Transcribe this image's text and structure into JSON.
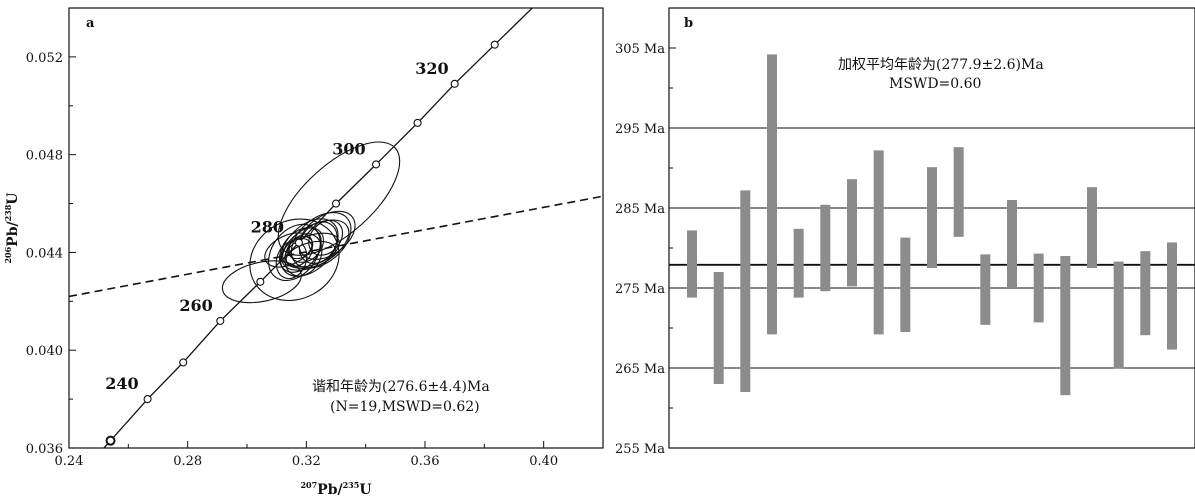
{
  "chart_data": [
    {
      "type": "scatter",
      "panel": "a",
      "xlabel": {
        "sup1": "207",
        "main1": "Pb/",
        "sup2": "235",
        "main2": "U"
      },
      "ylabel": {
        "sup1": "206",
        "main1": "Pb/",
        "sup2": "238",
        "main2": "U"
      },
      "xlim": [
        0.24,
        0.42
      ],
      "ylim": [
        0.036,
        0.054
      ],
      "x_ticks": [
        "0.24",
        "0.28",
        "0.32",
        "0.36",
        "0.40"
      ],
      "y_ticks": [
        "0.036",
        "0.040",
        "0.044",
        "0.048",
        "0.052"
      ],
      "concordia_points": [
        {
          "x": 0.254,
          "y": 0.0363
        },
        {
          "x": 0.2665,
          "y": 0.038
        },
        {
          "x": 0.2785,
          "y": 0.0395
        },
        {
          "x": 0.291,
          "y": 0.0412
        },
        {
          "x": 0.3045,
          "y": 0.0428
        },
        {
          "x": 0.3175,
          "y": 0.0444
        },
        {
          "x": 0.33,
          "y": 0.046
        },
        {
          "x": 0.3435,
          "y": 0.0476
        },
        {
          "x": 0.3575,
          "y": 0.0493
        },
        {
          "x": 0.37,
          "y": 0.0509
        },
        {
          "x": 0.3835,
          "y": 0.0525
        }
      ],
      "age_labels": [
        {
          "text": "240",
          "x": 0.2655,
          "y": 0.038
        },
        {
          "text": "260",
          "x": 0.2905,
          "y": 0.0412
        },
        {
          "text": "280",
          "x": 0.3145,
          "y": 0.0444
        },
        {
          "text": "300",
          "x": 0.342,
          "y": 0.0476
        },
        {
          "text": "320",
          "x": 0.37,
          "y": 0.0509
        }
      ],
      "discordia_line": {
        "x1": 0.24,
        "y1": 0.0422,
        "x2": 0.42,
        "y2": 0.0463
      },
      "error_ellipses": [
        {
          "cx": 0.331,
          "cy": 0.0462,
          "rx": 0.0255,
          "ry": 0.0014,
          "angle": -42
        },
        {
          "cx": 0.316,
          "cy": 0.0437,
          "rx": 0.0155,
          "ry": 0.0016,
          "angle": -28
        },
        {
          "cx": 0.305,
          "cy": 0.0428,
          "rx": 0.0135,
          "ry": 0.0008,
          "angle": -12
        },
        {
          "cx": 0.316,
          "cy": 0.044,
          "rx": 0.0105,
          "ry": 0.0009,
          "angle": -52
        },
        {
          "cx": 0.321,
          "cy": 0.0442,
          "rx": 0.0115,
          "ry": 0.0009,
          "angle": -45
        },
        {
          "cx": 0.323,
          "cy": 0.0443,
          "rx": 0.0125,
          "ry": 0.0008,
          "angle": -30
        },
        {
          "cx": 0.325,
          "cy": 0.0445,
          "rx": 0.0115,
          "ry": 0.0009,
          "angle": -40
        },
        {
          "cx": 0.327,
          "cy": 0.0447,
          "rx": 0.0105,
          "ry": 0.0008,
          "angle": -35
        },
        {
          "cx": 0.318,
          "cy": 0.0441,
          "rx": 0.0085,
          "ry": 0.0007,
          "angle": -50
        },
        {
          "cx": 0.319,
          "cy": 0.0439,
          "rx": 0.0075,
          "ry": 0.0007,
          "angle": -60
        },
        {
          "cx": 0.314,
          "cy": 0.0441,
          "rx": 0.0085,
          "ry": 0.0006,
          "angle": -25
        },
        {
          "cx": 0.32,
          "cy": 0.0443,
          "rx": 0.0065,
          "ry": 0.0006,
          "angle": -45
        },
        {
          "cx": 0.317,
          "cy": 0.044,
          "rx": 0.0055,
          "ry": 0.0005,
          "angle": -40
        },
        {
          "cx": 0.322,
          "cy": 0.0441,
          "rx": 0.0095,
          "ry": 0.0006,
          "angle": -20
        },
        {
          "cx": 0.315,
          "cy": 0.0437,
          "rx": 0.0065,
          "ry": 0.0006,
          "angle": -70
        },
        {
          "cx": 0.318,
          "cy": 0.0442,
          "rx": 0.0045,
          "ry": 0.0004,
          "angle": -35
        },
        {
          "cx": 0.324,
          "cy": 0.0444,
          "rx": 0.0075,
          "ry": 0.0007,
          "angle": -55
        },
        {
          "cx": 0.3215,
          "cy": 0.0439,
          "rx": 0.0085,
          "ry": 0.0005,
          "angle": -15
        },
        {
          "cx": 0.3265,
          "cy": 0.0446,
          "rx": 0.0065,
          "ry": 0.0006,
          "angle": -48
        }
      ],
      "annotation_line1": "谐和年龄为(276.6±4.4)Ma",
      "annotation_line2": "(N=19,MSWD=0.62)"
    },
    {
      "type": "bar",
      "panel": "b",
      "ylim": [
        255,
        310
      ],
      "y_ticks": [
        "255 Ma",
        "265 Ma",
        "275 Ma",
        "285 Ma",
        "295 Ma",
        "305 Ma"
      ],
      "grid_lines": [
        265,
        275,
        285,
        295
      ],
      "mean_line": 277.9,
      "bars": [
        {
          "low": 273.8,
          "high": 282.2
        },
        {
          "low": 263.0,
          "high": 277.0
        },
        {
          "low": 262.0,
          "high": 287.2
        },
        {
          "low": 269.2,
          "high": 304.2
        },
        {
          "low": 273.8,
          "high": 282.4
        },
        {
          "low": 274.6,
          "high": 285.4
        },
        {
          "low": 275.2,
          "high": 288.6
        },
        {
          "low": 269.2,
          "high": 292.2
        },
        {
          "low": 269.5,
          "high": 281.3
        },
        {
          "low": 277.5,
          "high": 290.1
        },
        {
          "low": 281.4,
          "high": 292.6
        },
        {
          "low": 270.4,
          "high": 279.2
        },
        {
          "low": 275.0,
          "high": 286.0
        },
        {
          "low": 270.7,
          "high": 279.3
        },
        {
          "low": 261.6,
          "high": 279.0
        },
        {
          "low": 277.5,
          "high": 287.6
        },
        {
          "low": 264.9,
          "high": 278.3
        },
        {
          "low": 269.1,
          "high": 279.6
        },
        {
          "low": 267.3,
          "high": 280.7
        }
      ],
      "bar_color": "#8c8c8c",
      "annotation_line1": "加权平均年龄为(277.9±2.6)Ma",
      "annotation_line2": "MSWD=0.60"
    }
  ]
}
